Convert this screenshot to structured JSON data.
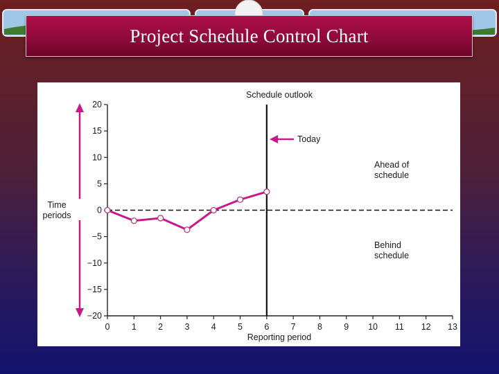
{
  "slide": {
    "title": "Project Schedule Control Chart"
  },
  "colors": {
    "series": "#c8178a",
    "title_bar": "#9a0c40"
  },
  "chart_data": {
    "type": "line",
    "title": "Schedule outlook",
    "xlabel": "Reporting period",
    "ylabel": "Time periods",
    "xlim": [
      0,
      13
    ],
    "ylim": [
      -20,
      20
    ],
    "x_ticks": [
      "0",
      "1",
      "2",
      "3",
      "4",
      "5",
      "6",
      "7",
      "8",
      "9",
      "10",
      "11",
      "12",
      "13"
    ],
    "y_ticks": [
      {
        "value": 20,
        "label": "20"
      },
      {
        "value": 15,
        "label": "15"
      },
      {
        "value": 10,
        "label": "10"
      },
      {
        "value": 5,
        "label": "5"
      },
      {
        "value": 0,
        "label": "0"
      },
      {
        "value": -5,
        "label": "−5"
      },
      {
        "value": -10,
        "label": "−10"
      },
      {
        "value": -15,
        "label": "−15"
      },
      {
        "value": -20,
        "label": "−20"
      }
    ],
    "series": [
      {
        "x": [
          0,
          1,
          2,
          3,
          4,
          5,
          6
        ],
        "y": [
          0,
          -2,
          -1.5,
          -3.7,
          0,
          2,
          3.5
        ]
      }
    ],
    "reference_line": {
      "y": 0,
      "style": "dashed"
    },
    "today_line": {
      "x": 6
    },
    "annotations": {
      "today": "Today",
      "ahead": [
        "Ahead of",
        "schedule"
      ],
      "behind": [
        "Behind",
        "schedule"
      ],
      "ylabel_lines": [
        "Time",
        "periods"
      ]
    }
  }
}
